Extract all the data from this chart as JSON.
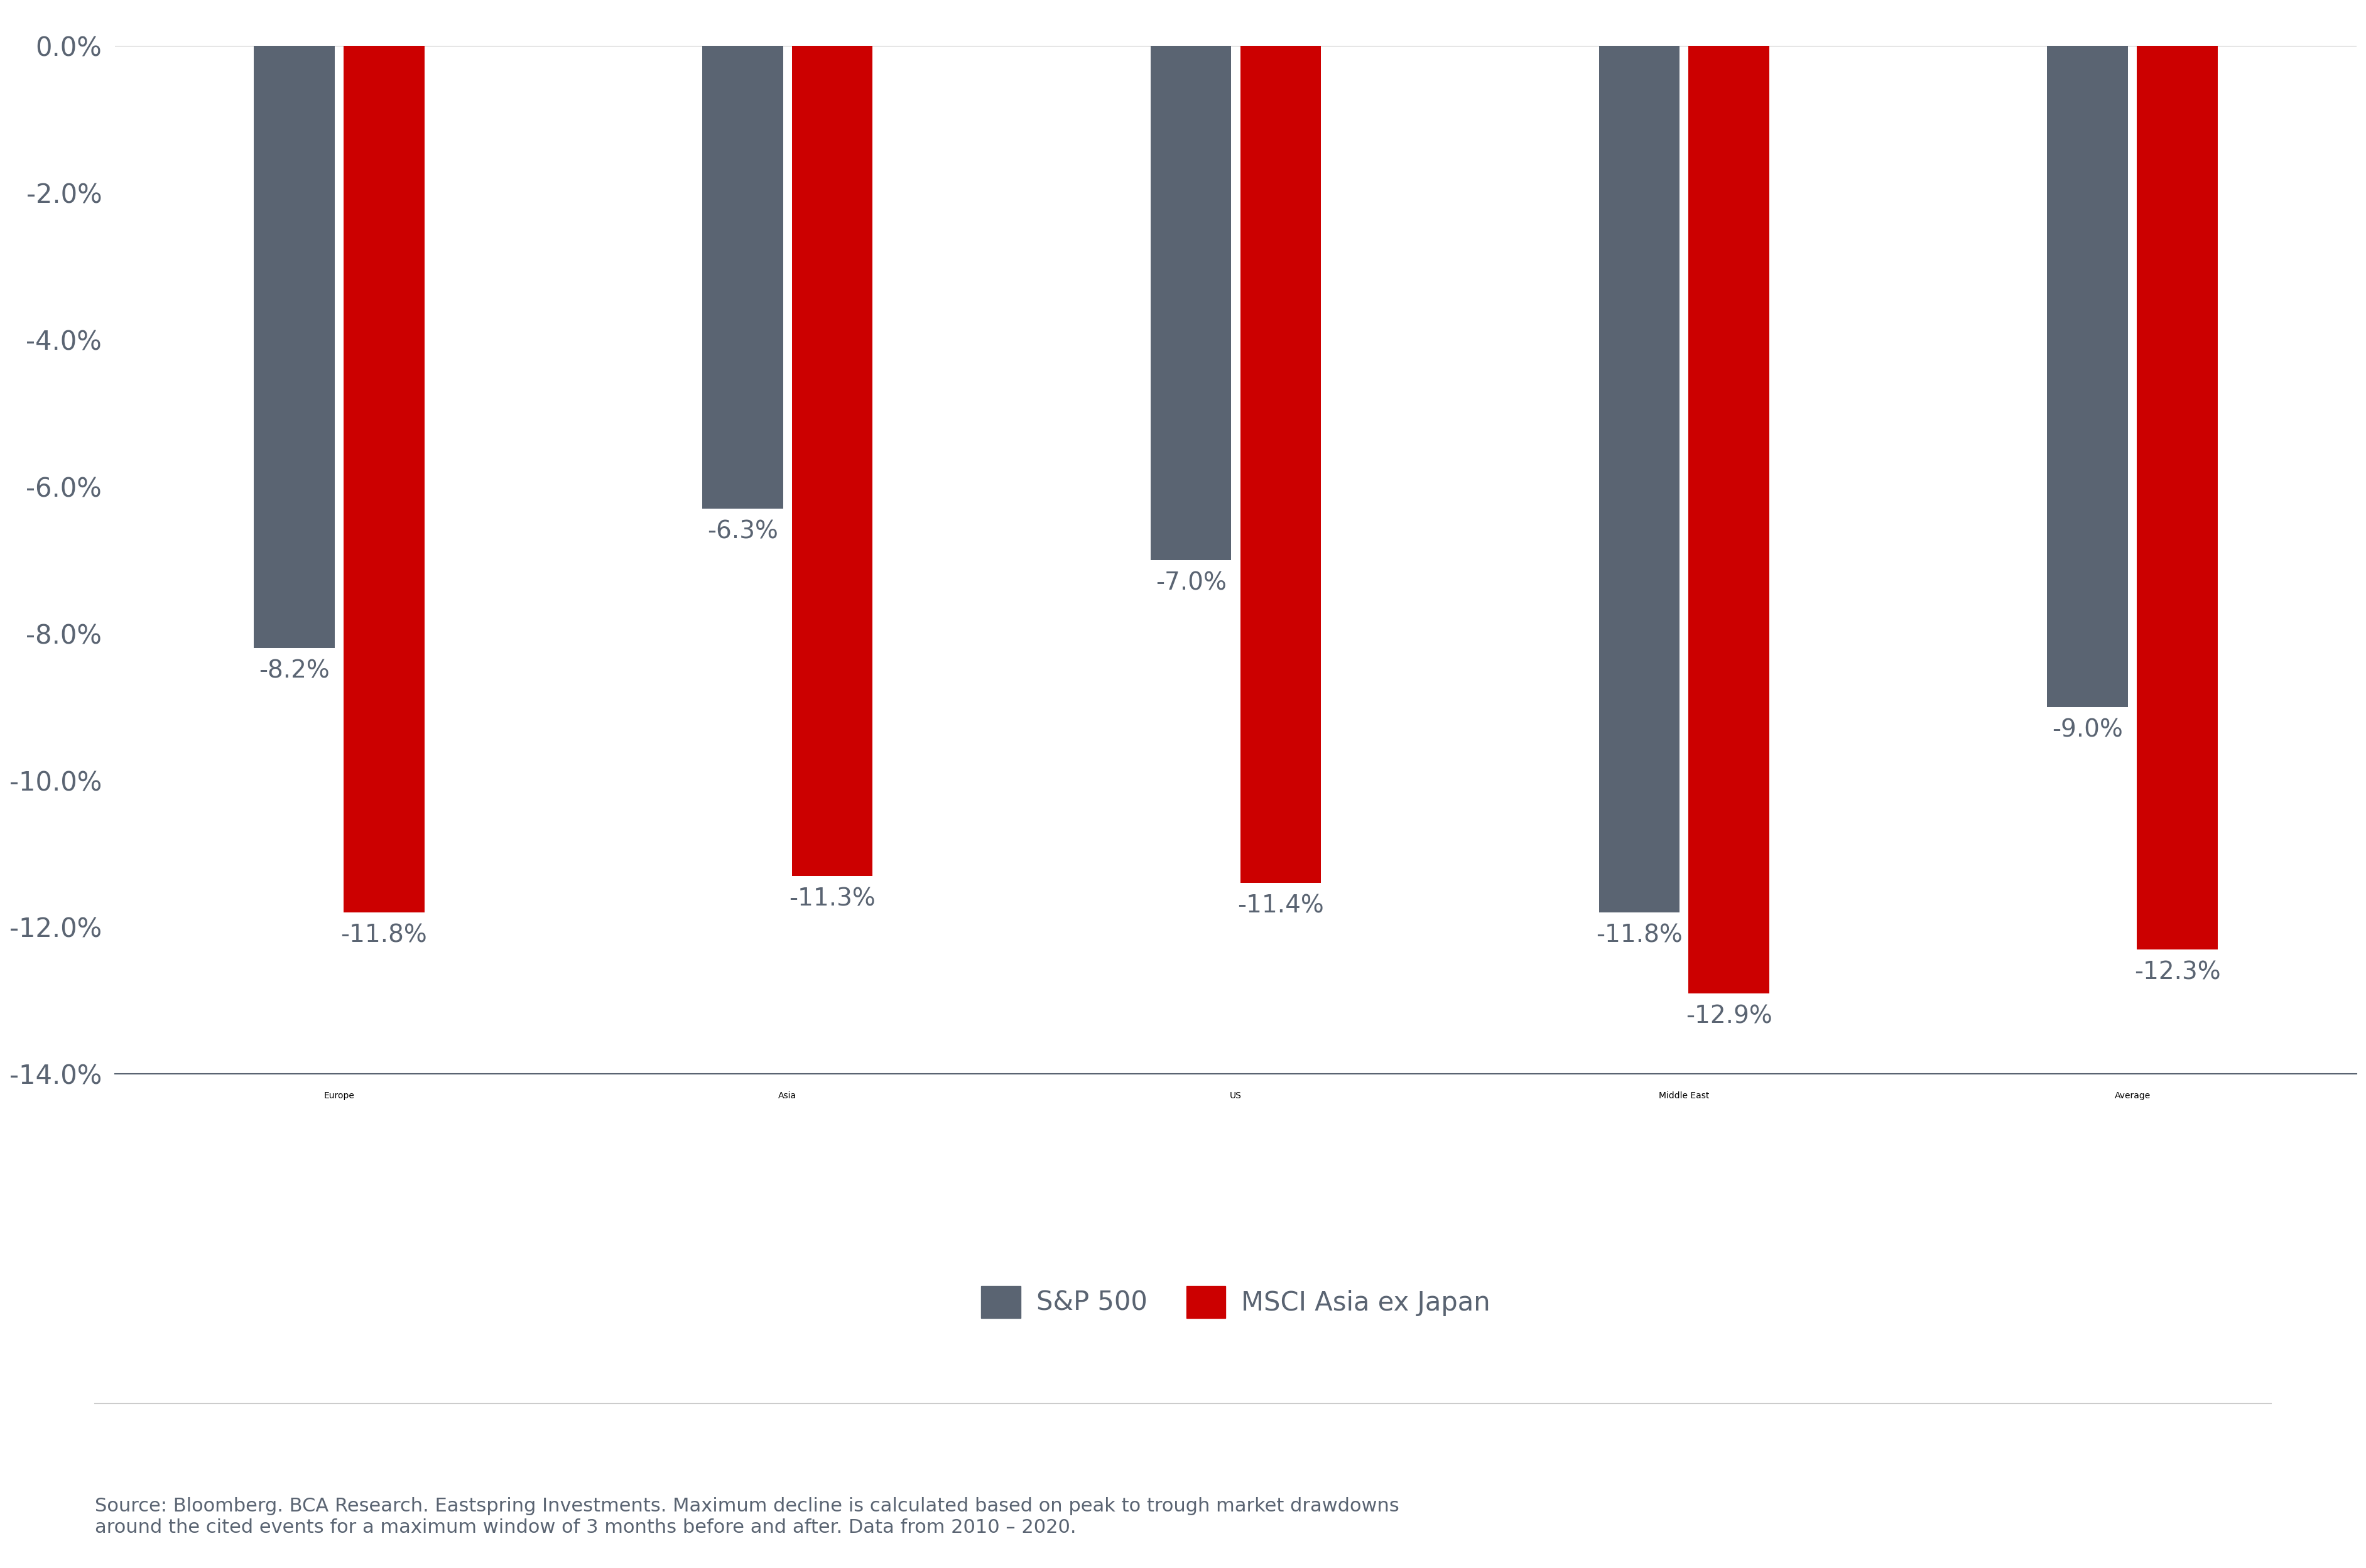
{
  "categories": [
    "Europe",
    "Asia",
    "US",
    "Middle East",
    "Average"
  ],
  "sp500": [
    -8.2,
    -6.3,
    -7.0,
    -11.8,
    -9.0
  ],
  "msci": [
    -11.8,
    -11.3,
    -11.4,
    -12.9,
    -12.3
  ],
  "sp500_labels": [
    "-8.2%",
    "-6.3%",
    "-7.0%",
    "-11.8%",
    "-9.0%"
  ],
  "msci_labels": [
    "-11.8%",
    "-11.3%",
    "-11.4%",
    "-12.9%",
    "-12.3%"
  ],
  "sp500_color": "#5a6472",
  "msci_color": "#cc0000",
  "ylim": [
    -14.5,
    0.5
  ],
  "yticks": [
    0.0,
    -2.0,
    -4.0,
    -6.0,
    -8.0,
    -10.0,
    -12.0,
    -14.0
  ],
  "ytick_labels": [
    "0.0%",
    "-2.0%",
    "-4.0%",
    "-6.0%",
    "-8.0%",
    "-10.0%",
    "-12.0%",
    "-14.0%"
  ],
  "bar_width": 0.18,
  "bar_gap": 0.02,
  "legend_sp500": "S&P 500",
  "legend_msci": "MSCI Asia ex Japan",
  "source_text": "Source: Bloomberg. BCA Research. Eastspring Investments. Maximum decline is calculated based on peak to trough market drawdowns\naround the cited events for a maximum window of 3 months before and after. Data from 2010 – 2020.",
  "background_color": "#ffffff",
  "tick_fontsize": 30,
  "legend_fontsize": 30,
  "source_fontsize": 22,
  "bar_label_fontsize": 28,
  "category_fontsize": 32,
  "label_color": "#5a6472"
}
